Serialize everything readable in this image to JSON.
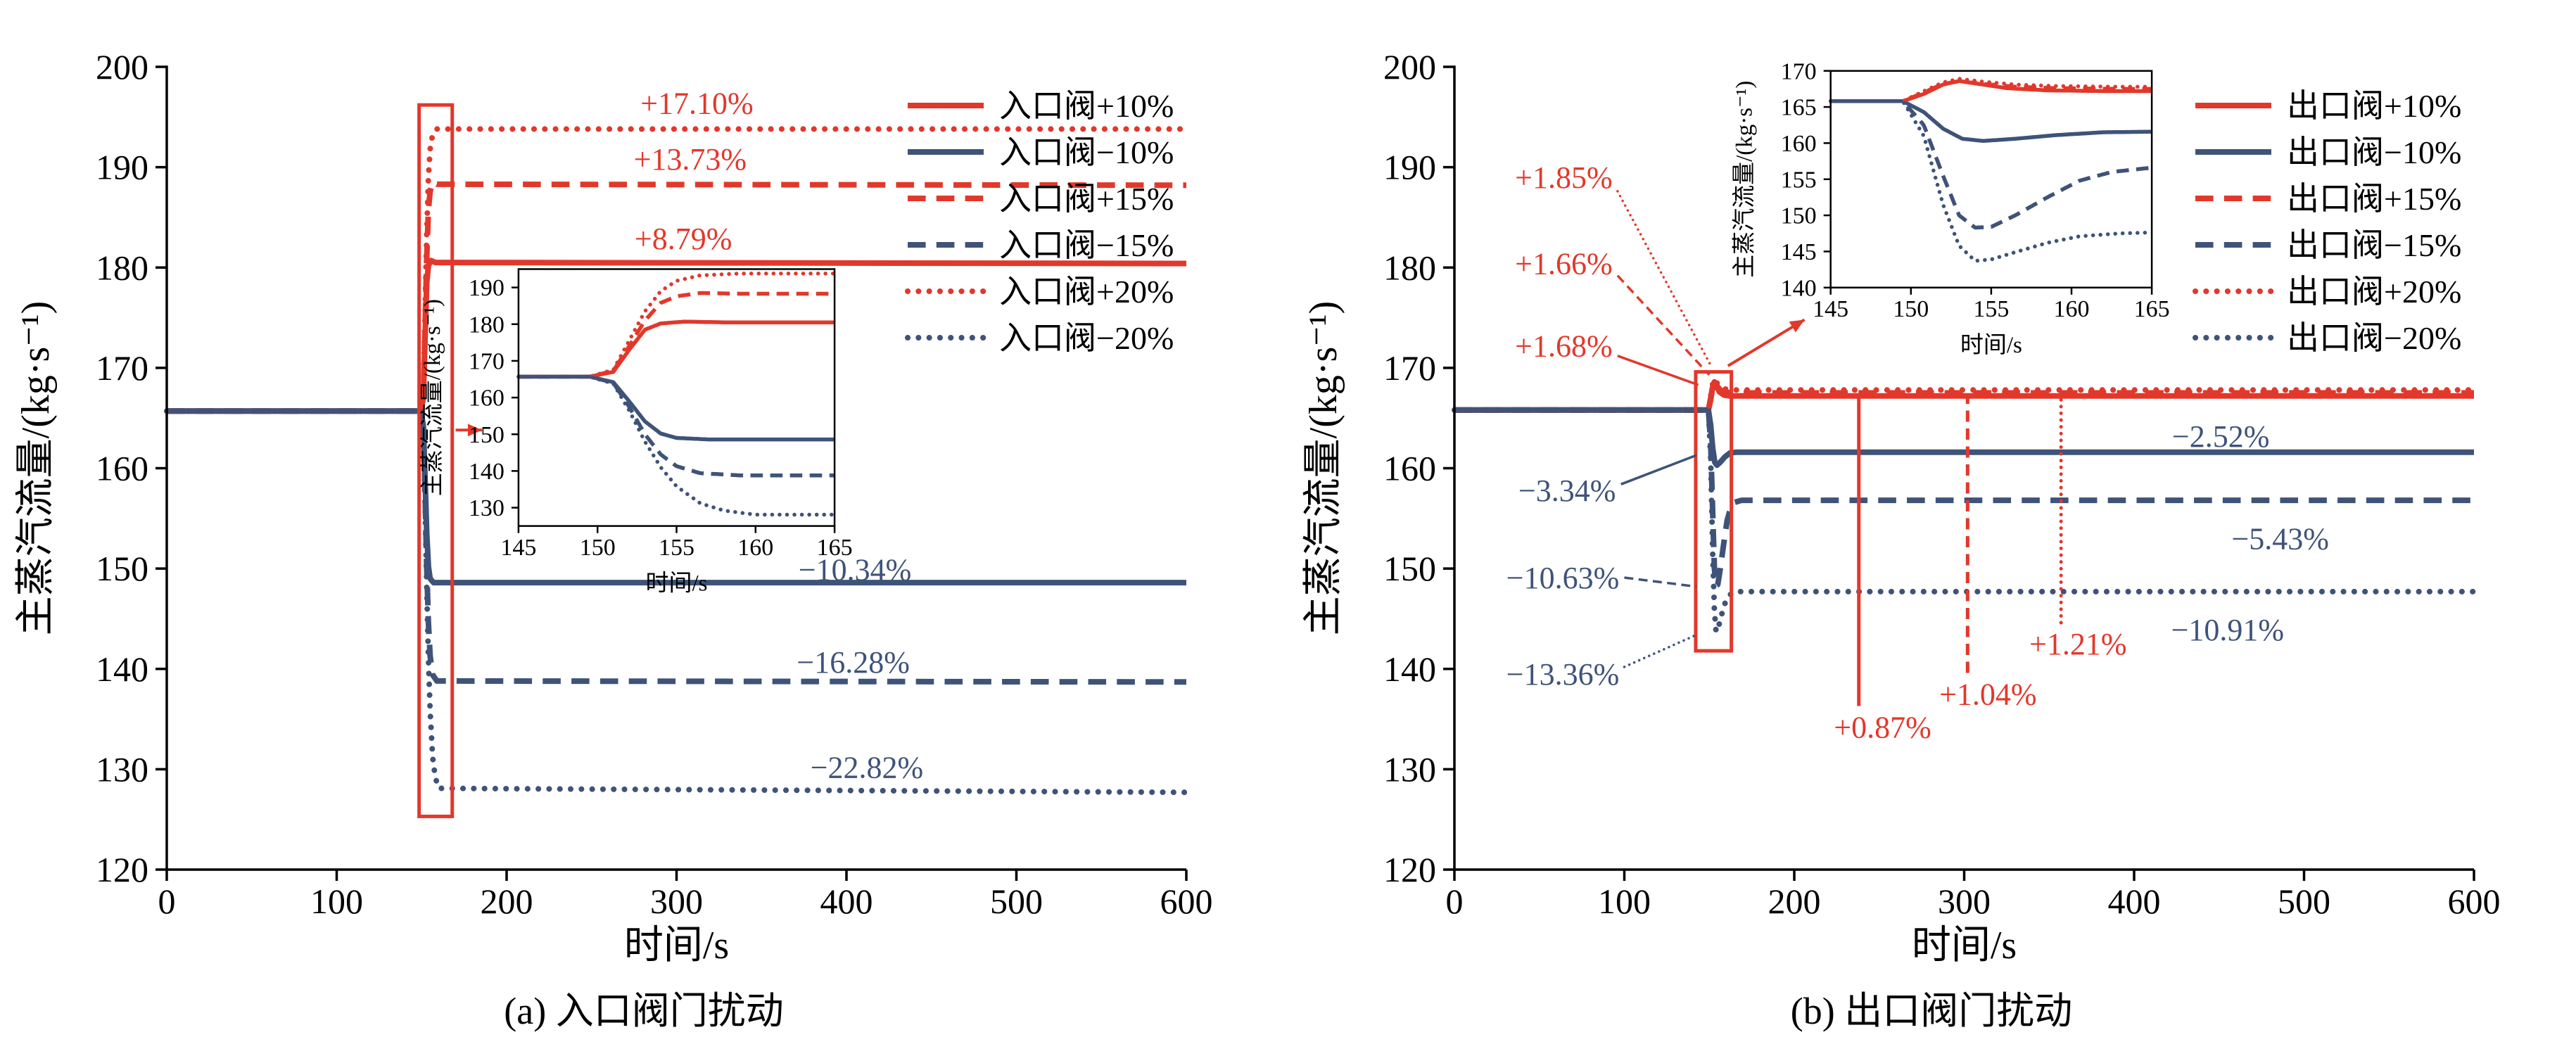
{
  "palette": {
    "red": "#e2382b",
    "blue": "#3f5379",
    "axis": "#000000",
    "background": "#ffffff"
  },
  "chart_data": [
    {
      "type": "line",
      "caption": "(a) 入口阀门扰动",
      "xlabel": "时间/s",
      "ylabel": "主蒸汽流量/(kg·s⁻¹)",
      "xlim": [
        0,
        600
      ],
      "ylim": [
        120,
        200
      ],
      "xticks": [
        0,
        100,
        200,
        300,
        400,
        500,
        600
      ],
      "yticks": [
        120,
        130,
        140,
        150,
        160,
        170,
        180,
        190,
        200
      ],
      "legend_position": "top-right",
      "series": [
        {
          "key": "inlet-p10",
          "name": "入口阀+10%",
          "color": "red",
          "dash": "solid",
          "points": [
            [
              0,
              165.7
            ],
            [
              149.5,
              165.7
            ],
            [
              151,
              167
            ],
            [
              152,
              173
            ],
            [
              153,
              178.5
            ],
            [
              154,
              180.2
            ],
            [
              155.5,
              180.7
            ],
            [
              158,
              180.5
            ],
            [
              600,
              180.4
            ]
          ]
        },
        {
          "key": "inlet-m10",
          "name": "入口阀−10%",
          "color": "blue",
          "dash": "solid",
          "points": [
            [
              0,
              165.7
            ],
            [
              149.5,
              165.7
            ],
            [
              151,
              164.2
            ],
            [
              152,
              159
            ],
            [
              153,
              153.5
            ],
            [
              154,
              150.2
            ],
            [
              155,
              149
            ],
            [
              157,
              148.6
            ],
            [
              600,
              148.6
            ]
          ]
        },
        {
          "key": "inlet-p15",
          "name": "入口阀+15%",
          "color": "red",
          "dash": "dashed",
          "points": [
            [
              0,
              165.7
            ],
            [
              149.5,
              165.7
            ],
            [
              151,
              167.3
            ],
            [
              152,
              174
            ],
            [
              153,
              181
            ],
            [
              154,
              185.8
            ],
            [
              155,
              187.6
            ],
            [
              156.5,
              188.5
            ],
            [
              159,
              188.3
            ],
            [
              600,
              188.2
            ]
          ]
        },
        {
          "key": "inlet-m15",
          "name": "入口阀−15%",
          "color": "blue",
          "dash": "dashed",
          "points": [
            [
              0,
              165.7
            ],
            [
              149.5,
              165.7
            ],
            [
              151,
              164
            ],
            [
              152,
              157.5
            ],
            [
              153,
              150
            ],
            [
              154,
              144.5
            ],
            [
              155,
              141.3
            ],
            [
              156.5,
              139.4
            ],
            [
              159,
              138.8
            ],
            [
              600,
              138.7
            ]
          ]
        },
        {
          "key": "inlet-p20",
          "name": "入口阀+20%",
          "color": "red",
          "dash": "dotted",
          "points": [
            [
              0,
              165.7
            ],
            [
              149.5,
              165.7
            ],
            [
              151,
              167.6
            ],
            [
              152,
              175.5
            ],
            [
              153,
              183.5
            ],
            [
              154,
              189
            ],
            [
              155,
              191.8
            ],
            [
              156.5,
              193.3
            ],
            [
              159,
              193.8
            ],
            [
              600,
              193.8
            ]
          ]
        },
        {
          "key": "inlet-m20",
          "name": "入口阀−20%",
          "color": "blue",
          "dash": "dotted",
          "points": [
            [
              0,
              165.7
            ],
            [
              149.5,
              165.7
            ],
            [
              151,
              163.8
            ],
            [
              152,
              156.5
            ],
            [
              153,
              148
            ],
            [
              154,
              141
            ],
            [
              155,
              135.8
            ],
            [
              156.5,
              131.2
            ],
            [
              158,
              129.2
            ],
            [
              160,
              128.1
            ],
            [
              600,
              127.7
            ]
          ]
        }
      ],
      "annotations": [
        {
          "text": "+17.10%",
          "color": "red",
          "x": 312,
          "y": 196.4
        },
        {
          "text": "+13.73%",
          "color": "red",
          "x": 308,
          "y": 190.8
        },
        {
          "text": "+8.79%",
          "color": "red",
          "x": 304,
          "y": 182.9
        },
        {
          "text": "−10.34%",
          "color": "blue",
          "x": 405,
          "y": 149.9
        },
        {
          "text": "−16.28%",
          "color": "blue",
          "x": 404,
          "y": 140.7
        },
        {
          "text": "−22.82%",
          "color": "blue",
          "x": 412,
          "y": 130.2
        }
      ],
      "highlight_rect": {
        "x0": 148.5,
        "x1": 168,
        "y0": 125.3,
        "y1": 196.2
      },
      "arrow": {
        "from": [
          170,
          163.8
        ],
        "to": [
          185.5,
          163.8
        ]
      },
      "inset": {
        "pos": {
          "left_frac": 0.345,
          "top_frac": 0.252,
          "width_frac": 0.31,
          "height_frac": 0.32
        },
        "xlim": [
          145,
          165
        ],
        "ylim": [
          125,
          195
        ],
        "xticks": [
          145,
          150,
          155,
          160,
          165
        ],
        "yticks": [
          130,
          140,
          150,
          160,
          170,
          180,
          190
        ],
        "xlabel": "时间/s",
        "ylabel": "主蒸汽流量/(kg·s⁻¹)"
      }
    },
    {
      "type": "line",
      "caption": "(b) 出口阀门扰动",
      "xlabel": "时间/s",
      "ylabel": "主蒸汽流量/(kg·s⁻¹)",
      "xlim": [
        0,
        600
      ],
      "ylim": [
        120,
        200
      ],
      "xticks": [
        0,
        100,
        200,
        300,
        400,
        500,
        600
      ],
      "yticks": [
        120,
        130,
        140,
        150,
        160,
        170,
        180,
        190,
        200
      ],
      "legend_position": "top-right",
      "series": [
        {
          "key": "outlet-p10",
          "name": "出口阀+10%",
          "color": "red",
          "dash": "solid",
          "points": [
            [
              0,
              165.8
            ],
            [
              149.5,
              165.8
            ],
            [
              150.8,
              166.8
            ],
            [
              152,
              168.1
            ],
            [
              153,
              168.6
            ],
            [
              154.2,
              168.2
            ],
            [
              156,
              167.6
            ],
            [
              158.5,
              167.3
            ],
            [
              162,
              167.2
            ],
            [
              600,
              167.2
            ]
          ]
        },
        {
          "key": "outlet-m10",
          "name": "出口阀−10%",
          "color": "blue",
          "dash": "solid",
          "points": [
            [
              0,
              165.8
            ],
            [
              149.5,
              165.8
            ],
            [
              150.8,
              164.3
            ],
            [
              152,
              162
            ],
            [
              153.2,
              160.6
            ],
            [
              154.5,
              160.3
            ],
            [
              156.5,
              160.6
            ],
            [
              159,
              161.1
            ],
            [
              162,
              161.5
            ],
            [
              166,
              161.6
            ],
            [
              600,
              161.6
            ]
          ]
        },
        {
          "key": "outlet-p15",
          "name": "出口阀+15%",
          "color": "red",
          "dash": "dashed",
          "points": [
            [
              0,
              165.8
            ],
            [
              149.5,
              165.8
            ],
            [
              150.8,
              167
            ],
            [
              152,
              168.2
            ],
            [
              153,
              168.55
            ],
            [
              154.5,
              168.2
            ],
            [
              156.5,
              167.8
            ],
            [
              159,
              167.6
            ],
            [
              163,
              167.5
            ],
            [
              600,
              167.5
            ]
          ]
        },
        {
          "key": "outlet-m15",
          "name": "出口阀−15%",
          "color": "blue",
          "dash": "dashed",
          "points": [
            [
              0,
              165.8
            ],
            [
              149.5,
              165.8
            ],
            [
              150.8,
              162.5
            ],
            [
              152,
              155.5
            ],
            [
              153,
              150
            ],
            [
              154,
              148.3
            ],
            [
              155,
              148.4
            ],
            [
              156.5,
              150
            ],
            [
              158.5,
              152.5
            ],
            [
              160.5,
              154.8
            ],
            [
              162.5,
              156
            ],
            [
              165,
              156.6
            ],
            [
              169,
              156.8
            ],
            [
              600,
              156.8
            ]
          ]
        },
        {
          "key": "outlet-p20",
          "name": "出口阀+20%",
          "color": "red",
          "dash": "dotted",
          "points": [
            [
              0,
              165.8
            ],
            [
              149.5,
              165.8
            ],
            [
              150.8,
              167.2
            ],
            [
              152,
              168.4
            ],
            [
              153,
              168.9
            ],
            [
              154.5,
              168.5
            ],
            [
              156.5,
              168.1
            ],
            [
              159,
              167.9
            ],
            [
              163,
              167.8
            ],
            [
              600,
              167.8
            ]
          ]
        },
        {
          "key": "outlet-m20",
          "name": "出口阀−20%",
          "color": "blue",
          "dash": "dotted",
          "points": [
            [
              0,
              165.8
            ],
            [
              149.5,
              165.8
            ],
            [
              150.8,
              161
            ],
            [
              152,
              151.5
            ],
            [
              153,
              145.8
            ],
            [
              154,
              143.7
            ],
            [
              155,
              143.9
            ],
            [
              156.5,
              144.9
            ],
            [
              158.5,
              146.2
            ],
            [
              160.5,
              147.1
            ],
            [
              163,
              147.5
            ],
            [
              166,
              147.7
            ],
            [
              600,
              147.7
            ]
          ]
        }
      ],
      "annotations": [
        {
          "text": "+1.85%",
          "color": "red",
          "x": 93,
          "y": 189,
          "anchor": "end",
          "leader": {
            "from": [
              96,
              187.6
            ],
            "to": [
              151,
              170.2
            ],
            "dash": "dotted"
          }
        },
        {
          "text": "+1.66%",
          "color": "red",
          "x": 93,
          "y": 180.4,
          "anchor": "end",
          "leader": {
            "from": [
              96,
              179.2
            ],
            "to": [
              150,
              169.3
            ],
            "dash": "dashed"
          }
        },
        {
          "text": "+1.68%",
          "color": "red",
          "x": 93,
          "y": 172.2,
          "anchor": "end",
          "leader": {
            "from": [
              96,
              171.2
            ],
            "to": [
              143.5,
              168.3
            ],
            "dash": "solid"
          }
        },
        {
          "text": "−3.34%",
          "color": "blue",
          "x": 95,
          "y": 157.8,
          "anchor": "end",
          "leader": {
            "from": [
              98,
              158.4
            ],
            "to": [
              142.5,
              161.3
            ],
            "dash": "solid"
          }
        },
        {
          "text": "−10.63%",
          "color": "blue",
          "x": 97,
          "y": 149.1,
          "anchor": "end",
          "leader": {
            "from": [
              100,
              149.1
            ],
            "to": [
              142.5,
              148.2
            ],
            "dash": "dashed"
          }
        },
        {
          "text": "−13.36%",
          "color": "blue",
          "x": 97,
          "y": 139.5,
          "anchor": "end",
          "leader": {
            "from": [
              100,
              140.2
            ],
            "to": [
              142.5,
              143.4
            ],
            "dash": "dotted"
          }
        },
        {
          "text": "+0.87%",
          "color": "red",
          "x": 252,
          "y": 134.2,
          "vline": {
            "x": 238,
            "y0": 136.3,
            "y1": 167.1,
            "dash": "solid"
          }
        },
        {
          "text": "+1.04%",
          "color": "red",
          "x": 314,
          "y": 137.5,
          "vline": {
            "x": 302,
            "y0": 139.6,
            "y1": 167.4,
            "dash": "dashed"
          }
        },
        {
          "text": "+1.21%",
          "color": "red",
          "x": 367,
          "y": 142.5,
          "vline": {
            "x": 357,
            "y0": 144.6,
            "y1": 167.7,
            "dash": "dotted"
          }
        },
        {
          "text": "−2.52%",
          "color": "blue",
          "x": 451,
          "y": 163.2
        },
        {
          "text": "−5.43%",
          "color": "blue",
          "x": 486,
          "y": 153.0
        },
        {
          "text": "−10.91%",
          "color": "blue",
          "x": 455,
          "y": 143.9
        }
      ],
      "highlight_rect": {
        "x0": 142,
        "x1": 163,
        "y0": 141.8,
        "y1": 169.6
      },
      "arrow": {
        "from": [
          161,
          170.2
        ],
        "to": [
          206,
          174.8
        ]
      },
      "inset": {
        "pos": {
          "left_frac": 0.369,
          "top_frac": 0.005,
          "width_frac": 0.315,
          "height_frac": 0.27
        },
        "xlim": [
          145,
          165
        ],
        "ylim": [
          140,
          170
        ],
        "xticks": [
          145,
          150,
          155,
          160,
          165
        ],
        "yticks": [
          140,
          145,
          150,
          155,
          160,
          165,
          170
        ],
        "xlabel": "时间/s",
        "ylabel": "主蒸汽流量/(kg·s⁻¹)"
      }
    }
  ]
}
